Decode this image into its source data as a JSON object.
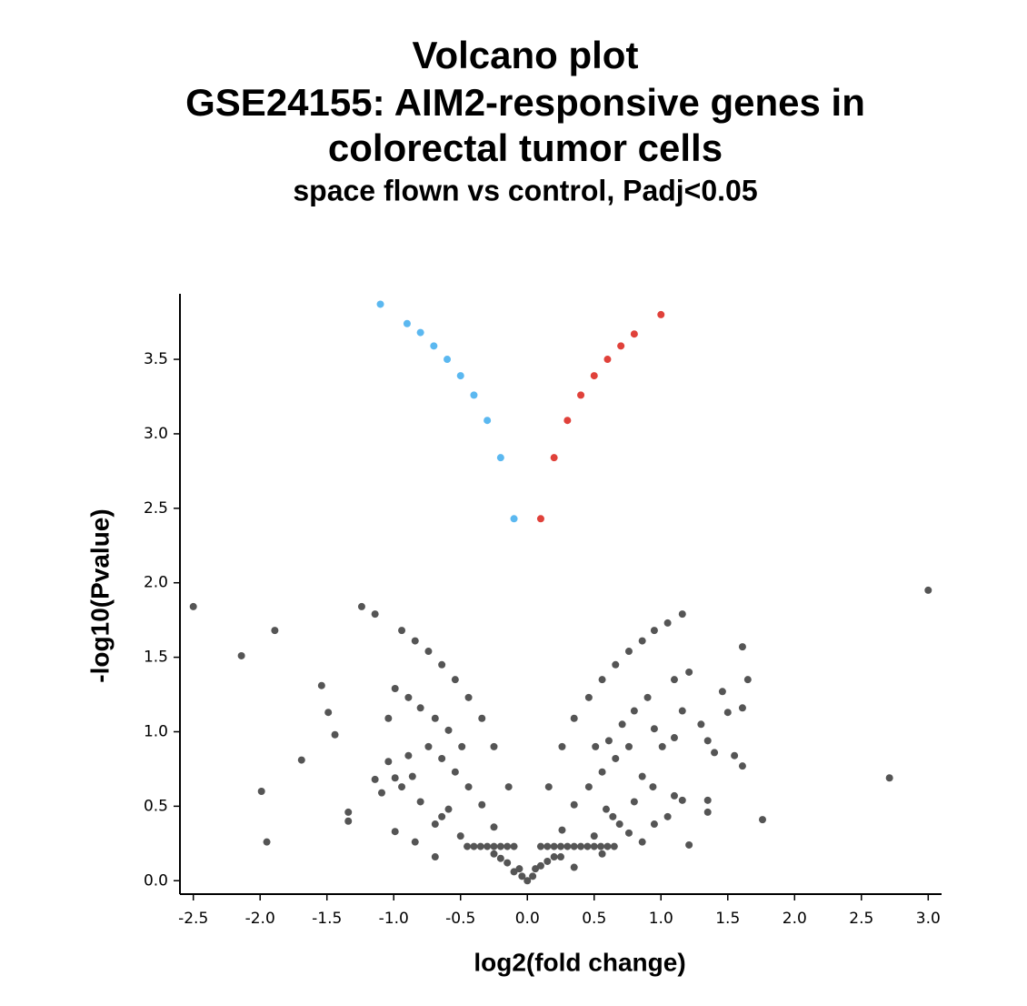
{
  "chart_data": {
    "type": "scatter",
    "title": [
      "Volcano plot",
      "GSE24155: AIM2-responsive genes in",
      "colorectal tumor cells"
    ],
    "subtitle": "space flown vs control, Padj<0.05",
    "x_label": "log2(fold change)",
    "y_label": "-log10(Pvalue)",
    "xlim": [
      -2.6,
      3.1
    ],
    "ylim": [
      -0.09,
      3.94
    ],
    "xticks": [
      -2.5,
      {
        "value": -2,
        "label": "-2.0"
      },
      -1.5,
      {
        "value": -1,
        "label": "-1.0"
      },
      -0.5,
      {
        "value": 0,
        "label": "0.0"
      },
      0.5,
      {
        "value": 1,
        "label": "1.0"
      },
      1.5,
      {
        "value": 2,
        "label": "2.0"
      },
      2.5,
      {
        "value": 3,
        "label": "3.0"
      }
    ],
    "yticks": [
      {
        "value": 0,
        "label": "0.0"
      },
      0.5,
      {
        "value": 1,
        "label": "1.0"
      },
      1.5,
      {
        "value": 2,
        "label": "2.0"
      },
      2.5,
      {
        "value": 3,
        "label": "3.0"
      },
      3.5
    ],
    "series": [
      {
        "color": "#5bb8f0",
        "x": [
          -1.1,
          -0.9,
          -0.8,
          -0.7,
          -0.6,
          -0.5,
          -0.4,
          -0.3,
          -0.2,
          -0.1
        ],
        "values": [
          3.87,
          3.74,
          3.68,
          3.59,
          3.5,
          3.39,
          3.26,
          3.09,
          2.84,
          2.43
        ]
      },
      {
        "color": "#e0413a",
        "x": [
          0.1,
          0.2,
          0.3,
          0.4,
          0.5,
          0.6,
          0.7,
          0.8,
          1.0
        ],
        "values": [
          2.43,
          2.84,
          3.09,
          3.26,
          3.39,
          3.5,
          3.59,
          3.67,
          3.8
        ]
      },
      {
        "color": "#555555",
        "x": [
          -2.5,
          -2.14,
          -1.89,
          -1.99,
          -1.95,
          -1.69,
          -1.54,
          -1.49,
          -1.44,
          -1.34,
          -1.34,
          -1.24,
          -1.14,
          3.0,
          2.71,
          1.76,
          1.61,
          1.65,
          1.61,
          1.46,
          1.5,
          1.3,
          1.35,
          1.4,
          1.55,
          1.61,
          1.35,
          1.35,
          1.16,
          1.05,
          0.95,
          0.86,
          0.76,
          0.66,
          0.56,
          0.46,
          0.35,
          0.26,
          0.16,
          1.21,
          1.1,
          1.16,
          1.1,
          1.01,
          0.9,
          0.8,
          0.71,
          0.61,
          0.51,
          0.95,
          0.76,
          0.66,
          0.56,
          0.46,
          0.35,
          0.26,
          -0.94,
          -0.84,
          -0.74,
          -0.64,
          -0.54,
          -0.44,
          -0.34,
          -0.25,
          -0.14,
          -1.04,
          -0.99,
          -0.89,
          -0.8,
          -0.69,
          -0.59,
          -0.49,
          -0.74,
          -0.64,
          -0.54,
          -0.44,
          -0.34,
          -0.25,
          -1.04,
          -0.89,
          -1.14,
          -1.09,
          -0.99,
          -0.99,
          -0.84,
          -0.69,
          1.1,
          1.21,
          1.16,
          1.05,
          0.95,
          0.86,
          0.76,
          0.56,
          0.35,
          -0.45,
          -0.4,
          -0.35,
          -0.3,
          -0.25,
          -0.2,
          -0.15,
          -0.1,
          0.1,
          0.15,
          0.2,
          0.25,
          0.3,
          0.35,
          0.4,
          0.45,
          0.5,
          0.55,
          0.6,
          0.65,
          -0.06,
          -0.1,
          -0.04,
          0.0,
          0.04,
          0.06,
          0.1,
          -0.15,
          0.15,
          -0.2,
          0.2,
          -0.25,
          0.25,
          -0.59,
          -0.64,
          -0.69,
          0.59,
          0.64,
          0.69,
          -0.5,
          0.5,
          -0.8,
          0.8,
          -0.94,
          0.94,
          0.86,
          -0.86
        ],
        "values": [
          1.84,
          1.51,
          1.68,
          0.6,
          0.26,
          0.81,
          1.31,
          1.13,
          0.98,
          0.46,
          0.4,
          1.84,
          1.79,
          1.95,
          0.69,
          0.41,
          1.57,
          1.35,
          1.16,
          1.27,
          1.13,
          1.05,
          0.94,
          0.86,
          0.84,
          0.77,
          0.54,
          0.46,
          1.79,
          1.73,
          1.68,
          1.61,
          1.54,
          1.45,
          1.35,
          1.23,
          1.09,
          0.9,
          0.63,
          1.4,
          1.35,
          1.14,
          0.96,
          0.9,
          1.23,
          1.14,
          1.05,
          0.94,
          0.9,
          1.02,
          0.9,
          0.82,
          0.73,
          0.63,
          0.51,
          0.34,
          1.68,
          1.61,
          1.54,
          1.45,
          1.35,
          1.23,
          1.09,
          0.9,
          0.63,
          1.09,
          1.29,
          1.23,
          1.16,
          1.09,
          1.01,
          0.9,
          0.9,
          0.82,
          0.73,
          0.63,
          0.51,
          0.36,
          0.8,
          0.84,
          0.68,
          0.59,
          0.69,
          0.33,
          0.26,
          0.16,
          0.57,
          0.24,
          0.54,
          0.43,
          0.38,
          0.26,
          0.32,
          0.18,
          0.09,
          0.23,
          0.23,
          0.23,
          0.23,
          0.23,
          0.23,
          0.23,
          0.23,
          0.23,
          0.23,
          0.23,
          0.23,
          0.23,
          0.23,
          0.23,
          0.23,
          0.23,
          0.23,
          0.23,
          0.23,
          0.08,
          0.06,
          0.03,
          0.0,
          0.03,
          0.08,
          0.1,
          0.12,
          0.13,
          0.15,
          0.16,
          0.18,
          0.16,
          0.48,
          0.43,
          0.38,
          0.48,
          0.43,
          0.38,
          0.3,
          0.3,
          0.53,
          0.53,
          0.63,
          0.63,
          0.7,
          0.7
        ]
      }
    ]
  }
}
